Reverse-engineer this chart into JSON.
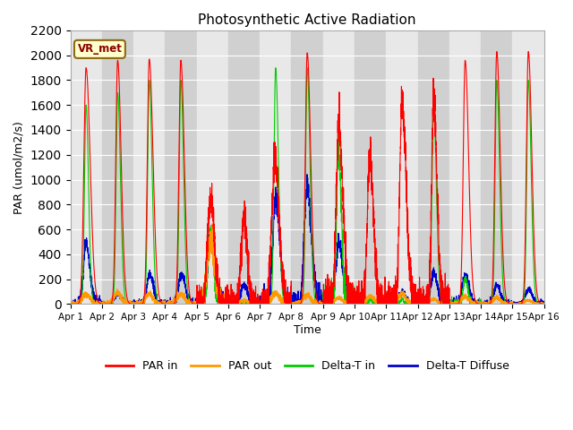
{
  "title": "Photosynthetic Active Radiation",
  "ylabel": "PAR (umol/m2/s)",
  "xlabel": "Time",
  "ylim": [
    0,
    2200
  ],
  "yticks": [
    0,
    200,
    400,
    600,
    800,
    1000,
    1200,
    1400,
    1600,
    1800,
    2000,
    2200
  ],
  "annotation": "VR_met",
  "legend": [
    "PAR in",
    "PAR out",
    "Delta-T in",
    "Delta-T Diffuse"
  ],
  "colors": {
    "PAR_in": "#ff0000",
    "PAR_out": "#ff9900",
    "Delta_T_in": "#00cc00",
    "Delta_T_Diffuse": "#0000cc"
  },
  "n_days": 15,
  "pts_per_day": 300
}
